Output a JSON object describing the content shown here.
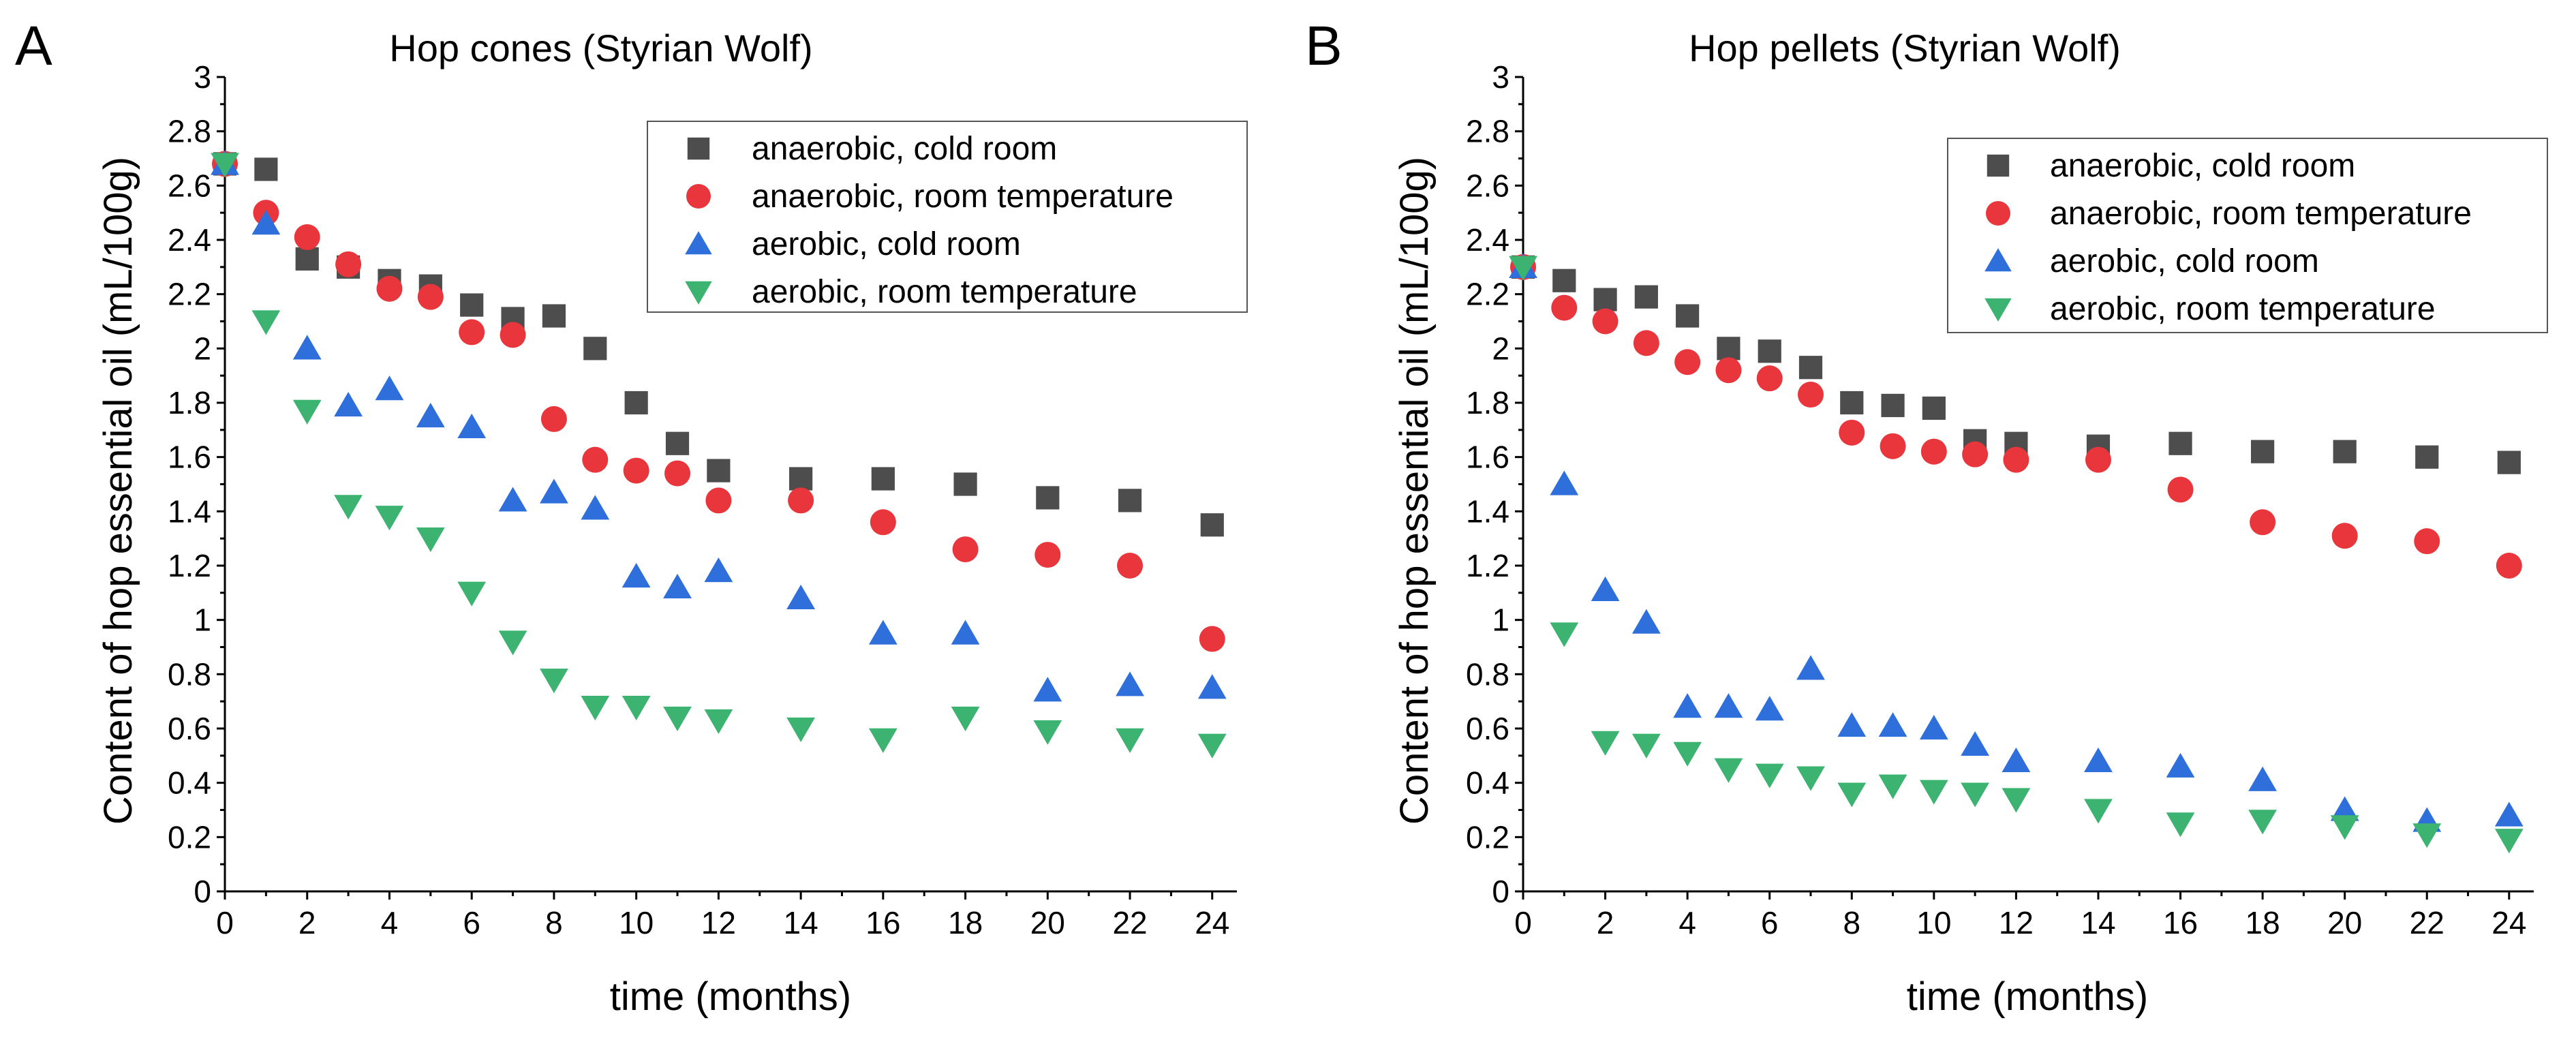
{
  "chart_data": [
    {
      "panel": "A",
      "type": "scatter",
      "title": "Hop cones (Styrian Wolf)",
      "xlabel": "time (months)",
      "ylabel": "Content of hop essential oil (mL/100g)",
      "xlim": [
        0,
        24.6
      ],
      "ylim": [
        0,
        3
      ],
      "xticks": [
        "0",
        "2",
        "4",
        "6",
        "8",
        "10",
        "12",
        "14",
        "16",
        "18",
        "20",
        "22",
        "24"
      ],
      "yticks": [
        "0",
        "0.2",
        "0.4",
        "0.6",
        "0.8",
        "1",
        "1.2",
        "1.4",
        "1.6",
        "1.8",
        "2",
        "2.2",
        "2.4",
        "2.6",
        "2.8",
        "3"
      ],
      "legend_position": "top-right",
      "series": [
        {
          "name": "anaerobic, cold room",
          "marker": "square",
          "color": "#4d4d4d",
          "x": [
            0,
            1,
            2,
            3,
            4,
            5,
            6,
            7,
            8,
            9,
            10,
            11,
            12,
            14,
            16,
            18,
            20,
            22,
            24
          ],
          "y": [
            2.68,
            2.66,
            2.33,
            2.3,
            2.25,
            2.23,
            2.16,
            2.11,
            2.12,
            2.0,
            1.8,
            1.65,
            1.55,
            1.52,
            1.52,
            1.5,
            1.45,
            1.44,
            1.35
          ]
        },
        {
          "name": "anaerobic, room temperature",
          "marker": "circle",
          "color": "#e8363c",
          "x": [
            0,
            1,
            2,
            3,
            4,
            5,
            6,
            7,
            8,
            9,
            10,
            11,
            12,
            14,
            16,
            18,
            20,
            22,
            24
          ],
          "y": [
            2.68,
            2.5,
            2.41,
            2.31,
            2.22,
            2.19,
            2.06,
            2.05,
            1.74,
            1.59,
            1.55,
            1.54,
            1.44,
            1.44,
            1.36,
            1.26,
            1.24,
            1.2,
            0.93
          ]
        },
        {
          "name": "aerobic, cold room",
          "marker": "triangle-up",
          "color": "#2e6fdb",
          "x": [
            0,
            1,
            2,
            3,
            4,
            5,
            6,
            7,
            8,
            9,
            10,
            11,
            12,
            14,
            16,
            18,
            20,
            22,
            24
          ],
          "y": [
            2.68,
            2.46,
            2.0,
            1.79,
            1.85,
            1.75,
            1.71,
            1.44,
            1.47,
            1.41,
            1.16,
            1.12,
            1.18,
            1.08,
            0.95,
            0.95,
            0.74,
            0.76,
            0.75
          ]
        },
        {
          "name": "aerobic, room temperature",
          "marker": "triangle-down",
          "color": "#3cb371",
          "x": [
            0,
            1,
            2,
            3,
            4,
            5,
            6,
            7,
            8,
            9,
            10,
            11,
            12,
            14,
            16,
            18,
            20,
            22,
            24
          ],
          "y": [
            2.68,
            2.1,
            1.77,
            1.42,
            1.38,
            1.3,
            1.1,
            0.92,
            0.78,
            0.68,
            0.68,
            0.64,
            0.63,
            0.6,
            0.56,
            0.64,
            0.59,
            0.56,
            0.54
          ]
        }
      ]
    },
    {
      "panel": "B",
      "type": "scatter",
      "title": "Hop pellets (Styrian Wolf)",
      "xlabel": "time (months)",
      "ylabel": "Content of hop essential oil (mL/100g)",
      "xlim": [
        0,
        24.6
      ],
      "ylim": [
        0,
        3
      ],
      "xticks": [
        "0",
        "2",
        "4",
        "6",
        "8",
        "10",
        "12",
        "14",
        "16",
        "18",
        "20",
        "22",
        "24"
      ],
      "yticks": [
        "0",
        "0.2",
        "0.4",
        "0.6",
        "0.8",
        "1",
        "1.2",
        "1.4",
        "1.6",
        "1.8",
        "2",
        "2.2",
        "2.4",
        "2.6",
        "2.8",
        "3"
      ],
      "legend_position": "top-right",
      "series": [
        {
          "name": "anaerobic, cold room",
          "marker": "square",
          "color": "#4d4d4d",
          "x": [
            0,
            1,
            2,
            3,
            4,
            5,
            6,
            7,
            8,
            9,
            10,
            11,
            12,
            14,
            16,
            18,
            20,
            22,
            24
          ],
          "y": [
            2.3,
            2.25,
            2.18,
            2.19,
            2.12,
            2.0,
            1.99,
            1.93,
            1.8,
            1.79,
            1.78,
            1.66,
            1.65,
            1.64,
            1.65,
            1.62,
            1.62,
            1.6,
            1.58
          ]
        },
        {
          "name": "anaerobic, room temperature",
          "marker": "circle",
          "color": "#e8363c",
          "x": [
            0,
            1,
            2,
            3,
            4,
            5,
            6,
            7,
            8,
            9,
            10,
            11,
            12,
            14,
            16,
            18,
            20,
            22,
            24
          ],
          "y": [
            2.3,
            2.15,
            2.1,
            2.02,
            1.95,
            1.92,
            1.89,
            1.83,
            1.69,
            1.64,
            1.62,
            1.61,
            1.59,
            1.59,
            1.48,
            1.36,
            1.31,
            1.29,
            1.2
          ]
        },
        {
          "name": "aerobic, cold room",
          "marker": "triangle-up",
          "color": "#2e6fdb",
          "x": [
            0,
            1,
            2,
            3,
            4,
            5,
            6,
            7,
            8,
            9,
            10,
            11,
            12,
            14,
            16,
            18,
            20,
            22,
            24
          ],
          "y": [
            2.3,
            1.5,
            1.11,
            0.99,
            0.68,
            0.68,
            0.67,
            0.82,
            0.61,
            0.61,
            0.6,
            0.54,
            0.48,
            0.48,
            0.46,
            0.41,
            0.3,
            0.26,
            0.28
          ]
        },
        {
          "name": "aerobic, room temperature",
          "marker": "triangle-down",
          "color": "#3cb371",
          "x": [
            0,
            1,
            2,
            3,
            4,
            5,
            6,
            7,
            8,
            9,
            10,
            11,
            12,
            14,
            16,
            18,
            20,
            22,
            24
          ],
          "y": [
            2.3,
            0.95,
            0.55,
            0.54,
            0.51,
            0.45,
            0.43,
            0.42,
            0.36,
            0.39,
            0.37,
            0.36,
            0.34,
            0.3,
            0.25,
            0.26,
            0.24,
            0.21,
            0.19
          ]
        }
      ]
    }
  ]
}
